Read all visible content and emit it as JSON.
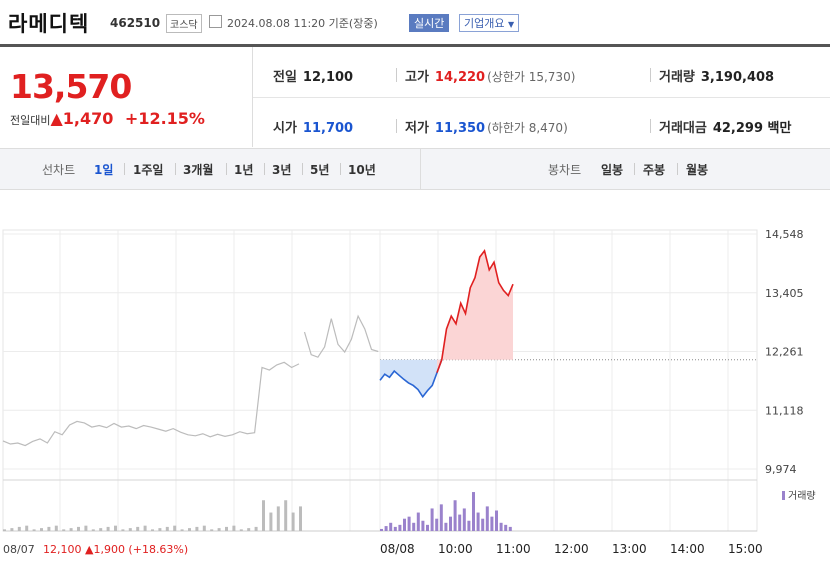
{
  "header": {
    "name": "라메디텍",
    "code": "462510",
    "market": "코스닥",
    "timestamp": "2024.08.08 11:20 기준(장중)",
    "realtime_label": "실시간",
    "corp_info_label": "기업개요"
  },
  "price": {
    "current": "13,570",
    "change_label": "전일대비",
    "change_arrow": "▲",
    "change_value": "1,470",
    "change_pct": "+12.15%"
  },
  "stats": {
    "prev_close_label": "전일",
    "prev_close": "12,100",
    "high_label": "고가",
    "high": "14,220",
    "upper_limit": "(상한가 15,730)",
    "volume_label": "거래량",
    "volume": "3,190,408",
    "open_label": "시가",
    "open": "11,700",
    "low_label": "저가",
    "low": "11,350",
    "lower_limit": "(하한가 8,470)",
    "amount_label": "거래대금",
    "amount": "42,299 백만"
  },
  "tabs": {
    "line_label": "선차트",
    "line_items": [
      "1일",
      "1주일",
      "3개월",
      "1년",
      "3년",
      "5년",
      "10년"
    ],
    "line_active": 0,
    "candle_label": "봉차트",
    "candle_items": [
      "일봉",
      "주봉",
      "월봉"
    ]
  },
  "chart_data": {
    "type": "line",
    "y_ticks": [
      "14,548",
      "13,405",
      "12,261",
      "11,118",
      "9,974"
    ],
    "ylim": [
      9974,
      14548
    ],
    "x_labels": [
      "08/07",
      "08/08",
      "10:00",
      "11:00",
      "12:00",
      "13:00",
      "14:00",
      "15:00"
    ],
    "reference_price": 12100,
    "prev_day_summary": {
      "date": "08/07",
      "close": "12,100",
      "arrow": "▲",
      "change": "1,900",
      "pct": "(+18.63%)"
    },
    "volume_legend": "거래량",
    "colors": {
      "prev_day": "#bcbcbc",
      "up": "#e02020",
      "down": "#2a66d4",
      "up_fill": "#fbd5d5",
      "down_fill": "#d2e2f8",
      "volume": "#9a82cc"
    },
    "series": [
      {
        "name": "08/07",
        "x": [
          0,
          1,
          2,
          3,
          4,
          5,
          6,
          7,
          8,
          9,
          10,
          11,
          12,
          13,
          14,
          15,
          16,
          17,
          18,
          19,
          20,
          21,
          22,
          23,
          24,
          25,
          26,
          27,
          28,
          29,
          30,
          31,
          32,
          33,
          34,
          35,
          36,
          37,
          38,
          39,
          40
        ],
        "values": [
          10520,
          10460,
          10480,
          10430,
          10510,
          10560,
          10480,
          10700,
          10640,
          10830,
          10900,
          10870,
          10790,
          10820,
          10780,
          10860,
          10790,
          10810,
          10760,
          10820,
          10790,
          10750,
          10710,
          10760,
          10690,
          10640,
          10620,
          10660,
          10600,
          10650,
          10610,
          10640,
          10700,
          10660,
          10680,
          11950,
          11900,
          12000,
          12050,
          11950,
          12020
        ]
      },
      {
        "name": "08/08 prior",
        "x": [
          45,
          46,
          47,
          48,
          49,
          50,
          51,
          52,
          53,
          54,
          55,
          56
        ],
        "values": [
          12640,
          12200,
          12150,
          12350,
          12900,
          12400,
          12250,
          12500,
          12950,
          12700,
          12300,
          12261
        ]
      },
      {
        "name": "08/08",
        "x": [
          0,
          5,
          10,
          15,
          20,
          25,
          30,
          35,
          40,
          45,
          50,
          55,
          60,
          65,
          70,
          75,
          80,
          85,
          90,
          95,
          100,
          105,
          110,
          115,
          120,
          125,
          130,
          135,
          140
        ],
        "values": [
          11700,
          11820,
          11760,
          11880,
          11800,
          11720,
          11650,
          11600,
          11520,
          11380,
          11500,
          11600,
          11850,
          12100,
          12700,
          12950,
          12800,
          13200,
          13000,
          13500,
          13700,
          14100,
          14220,
          13850,
          14000,
          13600,
          13450,
          13350,
          13570
        ]
      }
    ],
    "volume": [
      0.05,
      0.12,
      0.2,
      0.1,
      0.15,
      0.3,
      0.35,
      0.2,
      0.45,
      0.25,
      0.15,
      0.55,
      0.3,
      0.65,
      0.2,
      0.35,
      0.75,
      0.4,
      0.55,
      0.25,
      0.95,
      0.45,
      0.3,
      0.6,
      0.35,
      0.5,
      0.2,
      0.15,
      0.1
    ]
  }
}
